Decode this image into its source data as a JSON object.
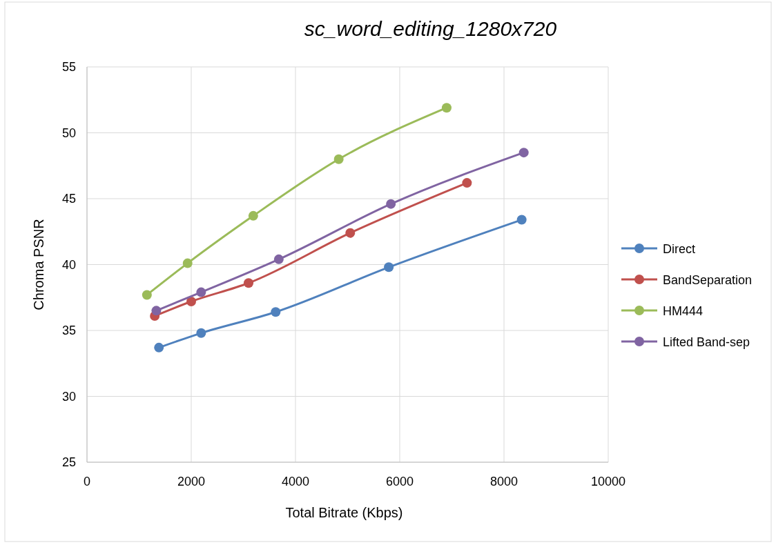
{
  "chart_data": {
    "type": "line",
    "title": "sc_word_editing_1280x720",
    "xlabel": "Total Bitrate (Kbps)",
    "ylabel": "Chroma PSNR",
    "xlim": [
      0,
      10000
    ],
    "xticks": [
      0,
      2000,
      4000,
      6000,
      8000,
      10000
    ],
    "ylim": [
      25,
      55
    ],
    "yticks": [
      25,
      30,
      35,
      40,
      45,
      50,
      55
    ],
    "grid": true,
    "legend": "right",
    "marker": "circle",
    "line_style": "solid",
    "series": [
      {
        "name": "Direct",
        "color": "#4f81bd",
        "x": [
          1380,
          2190,
          3620,
          5790,
          8340
        ],
        "values": [
          33.7,
          34.8,
          36.4,
          39.8,
          43.4
        ]
      },
      {
        "name": "BandSeparation",
        "color": "#c0504d",
        "x": [
          1300,
          2000,
          3100,
          5050,
          7290
        ],
        "values": [
          36.1,
          37.2,
          38.6,
          42.4,
          46.2
        ]
      },
      {
        "name": "HM444",
        "color": "#9bbb59",
        "x": [
          1150,
          1930,
          3190,
          4830,
          6900
        ],
        "values": [
          37.7,
          40.1,
          43.7,
          48.0,
          51.9
        ]
      },
      {
        "name": "Lifted Band-sep",
        "color": "#8064a2",
        "x": [
          1330,
          2190,
          3680,
          5830,
          8380
        ],
        "values": [
          36.5,
          37.9,
          40.4,
          44.6,
          48.5
        ]
      }
    ]
  }
}
